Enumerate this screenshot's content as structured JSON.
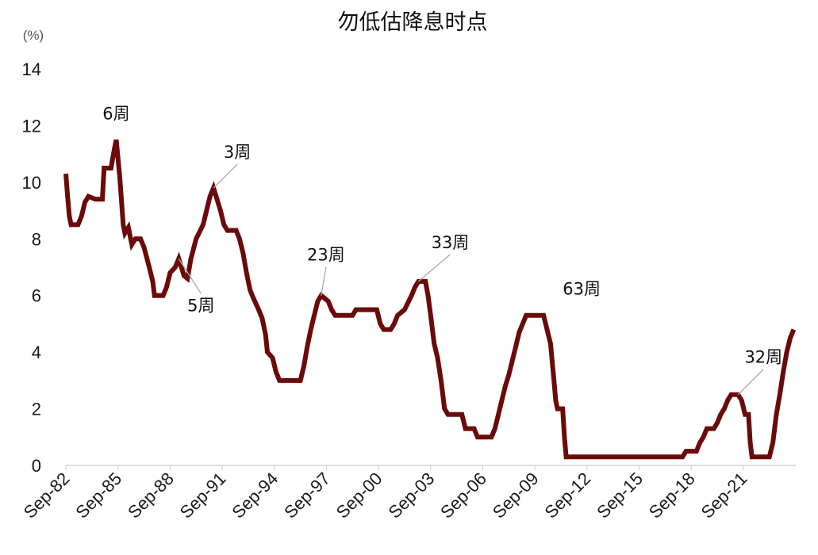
{
  "chart_data": {
    "type": "line",
    "title": "勿低估降息时点",
    "y_unit": "(%)",
    "ylim": [
      0,
      14
    ],
    "y_ticks": [
      0,
      2,
      4,
      6,
      8,
      10,
      12,
      14
    ],
    "x_ticks": [
      "Sep-82",
      "Sep-85",
      "Sep-88",
      "Sep-91",
      "Sep-94",
      "Sep-97",
      "Sep-00",
      "Sep-03",
      "Sep-06",
      "Sep-09",
      "Sep-12",
      "Sep-15",
      "Sep-18",
      "Sep-21"
    ],
    "line_color": "#6b0a0a",
    "grid": false,
    "series": [
      {
        "points": [
          [
            1982.7,
            10.3
          ],
          [
            1982.8,
            9.5
          ],
          [
            1982.9,
            8.8
          ],
          [
            1983.0,
            8.5
          ],
          [
            1983.4,
            8.5
          ],
          [
            1983.6,
            8.8
          ],
          [
            1983.8,
            9.3
          ],
          [
            1984.0,
            9.5
          ],
          [
            1984.4,
            9.4
          ],
          [
            1984.8,
            9.4
          ],
          [
            1984.9,
            10.5
          ],
          [
            1985.3,
            10.5
          ],
          [
            1985.5,
            11.2
          ],
          [
            1985.6,
            11.5
          ],
          [
            1985.8,
            10.2
          ],
          [
            1986.0,
            8.5
          ],
          [
            1986.1,
            8.2
          ],
          [
            1986.3,
            8.4
          ],
          [
            1986.5,
            7.8
          ],
          [
            1986.7,
            8.0
          ],
          [
            1987.0,
            8.0
          ],
          [
            1987.2,
            7.7
          ],
          [
            1987.5,
            7.0
          ],
          [
            1987.7,
            6.5
          ],
          [
            1987.8,
            6.0
          ],
          [
            1988.3,
            6.0
          ],
          [
            1988.5,
            6.3
          ],
          [
            1988.7,
            6.8
          ],
          [
            1989.0,
            7.0
          ],
          [
            1989.2,
            7.3
          ],
          [
            1989.5,
            6.7
          ],
          [
            1989.7,
            6.6
          ],
          [
            1989.9,
            7.3
          ],
          [
            1990.2,
            8.0
          ],
          [
            1990.6,
            8.5
          ],
          [
            1991.0,
            9.5
          ],
          [
            1991.2,
            9.8
          ],
          [
            1991.4,
            9.4
          ],
          [
            1991.6,
            9.0
          ],
          [
            1991.8,
            8.5
          ],
          [
            1992.0,
            8.3
          ],
          [
            1992.5,
            8.3
          ],
          [
            1992.7,
            8.0
          ],
          [
            1992.9,
            7.5
          ],
          [
            1993.1,
            6.8
          ],
          [
            1993.3,
            6.2
          ],
          [
            1993.5,
            5.9
          ],
          [
            1993.8,
            5.5
          ],
          [
            1994.0,
            5.2
          ],
          [
            1994.2,
            4.6
          ],
          [
            1994.3,
            4.0
          ],
          [
            1994.6,
            3.8
          ],
          [
            1994.8,
            3.3
          ],
          [
            1995.0,
            3.0
          ],
          [
            1996.2,
            3.0
          ],
          [
            1996.4,
            3.5
          ],
          [
            1996.6,
            4.2
          ],
          [
            1996.8,
            4.8
          ],
          [
            1997.0,
            5.3
          ],
          [
            1997.2,
            5.8
          ],
          [
            1997.4,
            6.0
          ],
          [
            1997.8,
            5.8
          ],
          [
            1998.0,
            5.5
          ],
          [
            1998.2,
            5.3
          ],
          [
            1999.2,
            5.3
          ],
          [
            1999.4,
            5.5
          ],
          [
            1999.6,
            5.5
          ],
          [
            2000.6,
            5.5
          ],
          [
            2000.8,
            5.0
          ],
          [
            2001.0,
            4.8
          ],
          [
            2001.4,
            4.8
          ],
          [
            2001.6,
            5.0
          ],
          [
            2001.8,
            5.3
          ],
          [
            2002.2,
            5.5
          ],
          [
            2002.6,
            6.0
          ],
          [
            2002.8,
            6.3
          ],
          [
            2003.0,
            6.5
          ],
          [
            2003.4,
            6.5
          ],
          [
            2003.55,
            6.0
          ],
          [
            2003.7,
            5.3
          ],
          [
            2003.9,
            4.3
          ],
          [
            2004.1,
            3.8
          ],
          [
            2004.3,
            3.0
          ],
          [
            2004.5,
            2.0
          ],
          [
            2004.7,
            1.8
          ],
          [
            2005.5,
            1.8
          ],
          [
            2005.7,
            1.3
          ],
          [
            2006.2,
            1.3
          ],
          [
            2006.4,
            1.0
          ],
          [
            2007.2,
            1.0
          ],
          [
            2007.4,
            1.3
          ],
          [
            2007.6,
            1.8
          ],
          [
            2007.8,
            2.3
          ],
          [
            2008.0,
            2.8
          ],
          [
            2008.2,
            3.2
          ],
          [
            2008.4,
            3.7
          ],
          [
            2008.6,
            4.2
          ],
          [
            2008.8,
            4.7
          ],
          [
            2009.0,
            5.0
          ],
          [
            2009.2,
            5.3
          ],
          [
            2010.2,
            5.3
          ],
          [
            2010.4,
            4.8
          ],
          [
            2010.6,
            4.3
          ],
          [
            2010.8,
            3.0
          ],
          [
            2010.9,
            2.3
          ],
          [
            2011.0,
            2.0
          ],
          [
            2011.3,
            2.0
          ],
          [
            2011.4,
            1.0
          ],
          [
            2011.5,
            0.3
          ],
          [
            2018.2,
            0.3
          ],
          [
            2018.4,
            0.5
          ],
          [
            2019.0,
            0.5
          ],
          [
            2019.2,
            0.8
          ],
          [
            2019.4,
            1.0
          ],
          [
            2019.6,
            1.3
          ],
          [
            2020.0,
            1.3
          ],
          [
            2020.2,
            1.5
          ],
          [
            2020.4,
            1.8
          ],
          [
            2020.6,
            2.0
          ],
          [
            2020.8,
            2.3
          ],
          [
            2021.0,
            2.5
          ],
          [
            2021.4,
            2.5
          ],
          [
            2021.6,
            2.3
          ],
          [
            2021.8,
            1.8
          ],
          [
            2022.0,
            1.8
          ],
          [
            2022.1,
            0.8
          ],
          [
            2022.2,
            0.3
          ],
          [
            2023.0,
            0.3
          ],
          [
            2023.2,
            0.3
          ],
          [
            2023.4,
            0.8
          ],
          [
            2023.6,
            1.8
          ],
          [
            2023.8,
            2.5
          ],
          [
            2024.0,
            3.3
          ],
          [
            2024.2,
            4.0
          ],
          [
            2024.4,
            4.5
          ],
          [
            2024.6,
            4.8
          ]
        ]
      }
    ],
    "annotations": [
      {
        "label": "6周",
        "at": [
          1985.6,
          11.5
        ]
      },
      {
        "label": "3周",
        "at": [
          1991.2,
          9.8
        ]
      },
      {
        "label": "5周",
        "at": [
          1989.2,
          7.3
        ]
      },
      {
        "label": "23周",
        "at": [
          1997.4,
          6.0
        ]
      },
      {
        "label": "33周",
        "at": [
          2003.0,
          6.5
        ]
      },
      {
        "label": "63周",
        "at": [
          2010.2,
          5.3
        ]
      },
      {
        "label": "32周",
        "at": [
          2021.4,
          2.5
        ]
      }
    ]
  }
}
